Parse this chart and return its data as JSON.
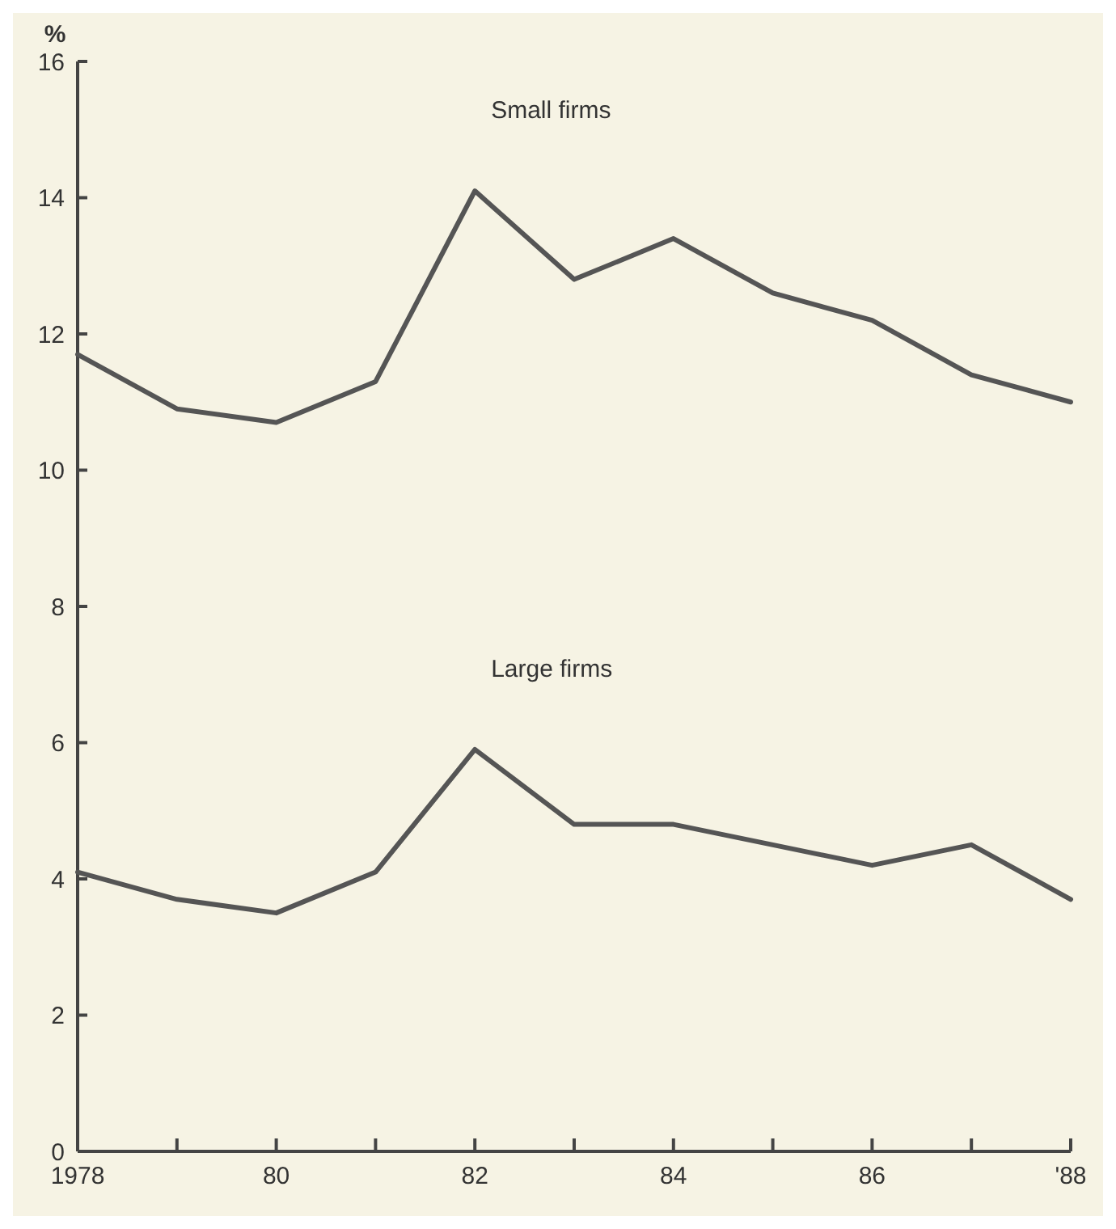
{
  "chart_data": {
    "type": "line",
    "ylabel": "%",
    "x": [
      1978,
      1979,
      1980,
      1981,
      1982,
      1983,
      1984,
      1985,
      1986,
      1987,
      1988
    ],
    "series": [
      {
        "name": "Small firms",
        "color": "#555555",
        "values": [
          11.7,
          10.9,
          10.7,
          11.3,
          14.1,
          12.8,
          13.4,
          12.6,
          12.2,
          11.4,
          11.0
        ]
      },
      {
        "name": "Large firms",
        "color": "#555555",
        "values": [
          4.1,
          3.7,
          3.5,
          4.1,
          5.9,
          4.8,
          4.8,
          4.5,
          4.2,
          4.5,
          3.7
        ]
      }
    ],
    "xlim": [
      1978,
      1988
    ],
    "xticks": [
      1978,
      {
        "value": 1979,
        "label": null
      },
      {
        "value": 1980,
        "label": "80"
      },
      {
        "value": 1981,
        "label": null
      },
      {
        "value": 1982,
        "label": "82"
      },
      {
        "value": 1983,
        "label": null
      },
      {
        "value": 1984,
        "label": "84"
      },
      {
        "value": 1985,
        "label": null
      },
      {
        "value": 1986,
        "label": "86"
      },
      {
        "value": 1987,
        "label": null
      },
      {
        "value": 1988,
        "label": "'88"
      }
    ],
    "ylim": [
      0,
      16
    ],
    "yticks": [
      0,
      2,
      4,
      6,
      8,
      10,
      12,
      14,
      16
    ],
    "grid": false,
    "line_style": "solid",
    "marker": "none"
  }
}
